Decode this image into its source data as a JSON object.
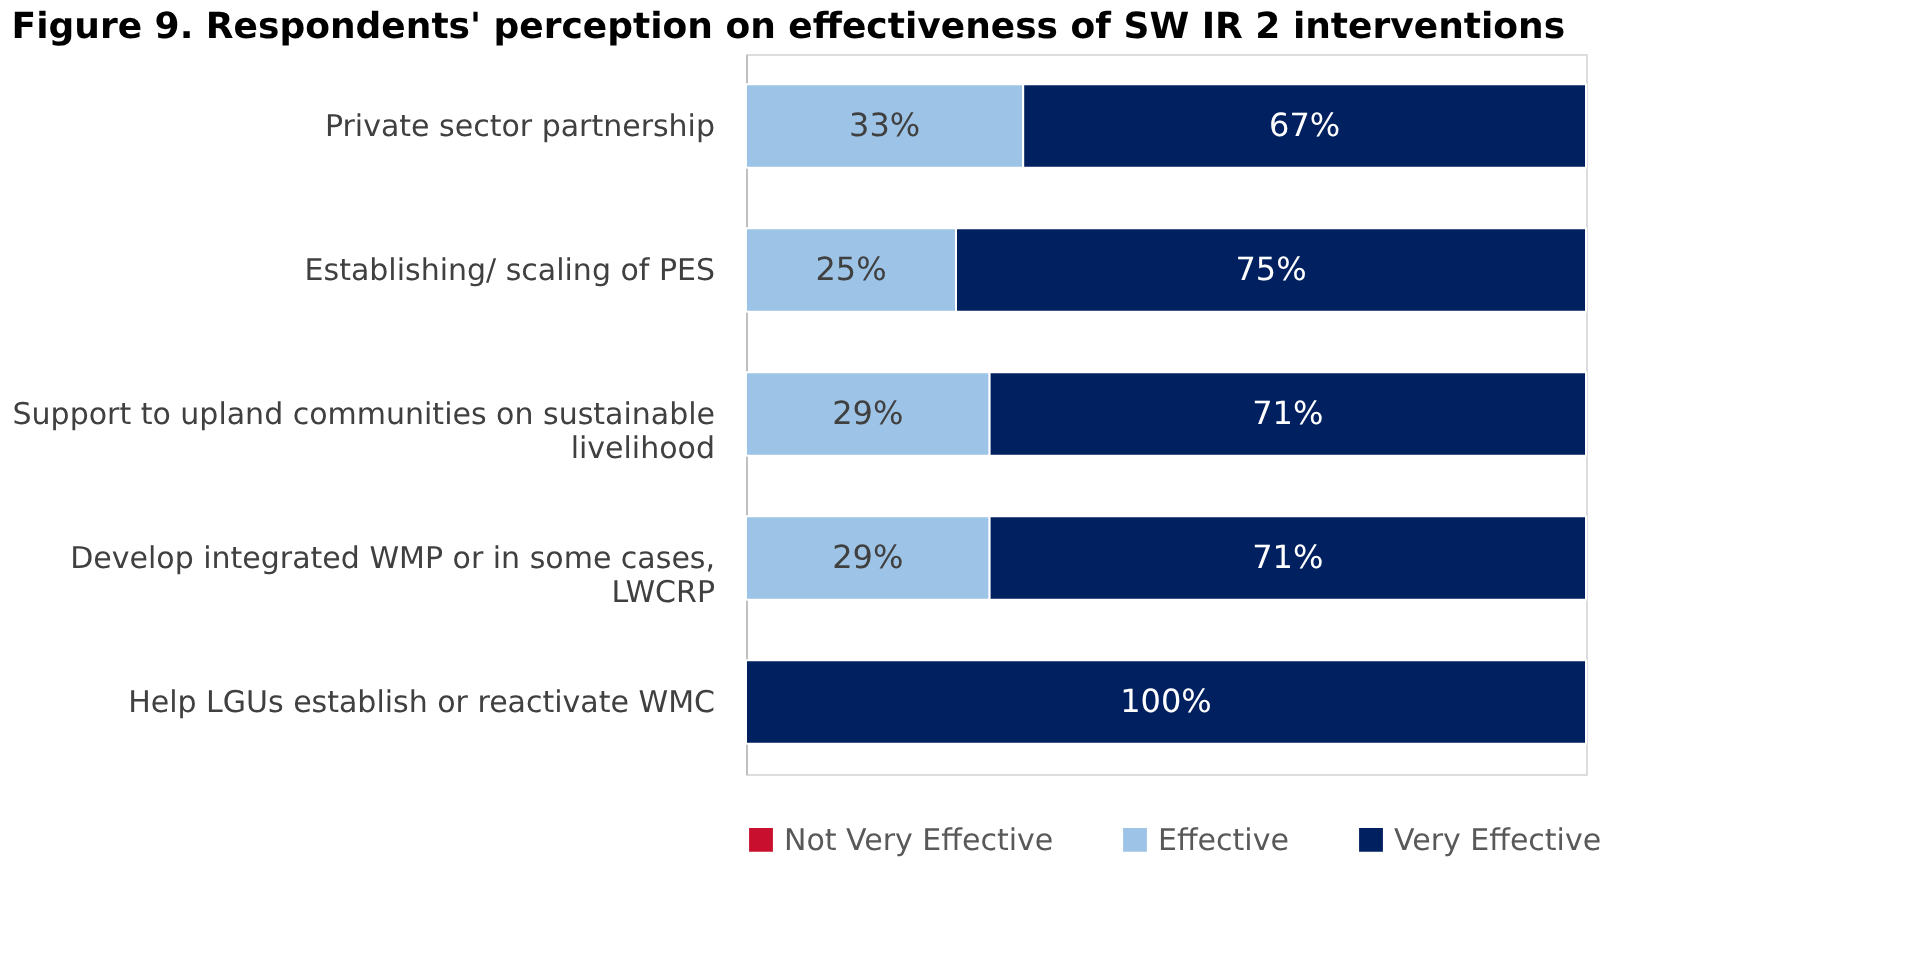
{
  "chart_data": {
    "type": "bar",
    "orientation": "horizontal",
    "stacked": true,
    "title": "Figure 9. Respondents' perception on effectiveness of SW IR 2 interventions",
    "categories": [
      "Private sector partnership",
      "Establishing/ scaling of PES",
      "Support to upland communities on sustainable livelihood",
      "Develop integrated WMP or in some cases, LWCRP",
      "Help LGUs establish or reactivate WMC"
    ],
    "series": [
      {
        "name": "Not Very Effective",
        "color": "#c8102e",
        "values": [
          null,
          null,
          null,
          null,
          null
        ],
        "value_labels": [
          null,
          null,
          null,
          null,
          null
        ]
      },
      {
        "name": "Effective",
        "color": "#9dc3e6",
        "values": [
          33,
          25,
          29,
          29,
          null
        ],
        "value_labels": [
          "33%",
          "25%",
          "29%",
          "29%",
          null
        ]
      },
      {
        "name": "Very Effective",
        "color": "#002060",
        "values": [
          67,
          75,
          71,
          71,
          100
        ],
        "value_labels": [
          "67%",
          "75%",
          "71%",
          "71%",
          "100%"
        ]
      }
    ],
    "legend": "bottom"
  }
}
